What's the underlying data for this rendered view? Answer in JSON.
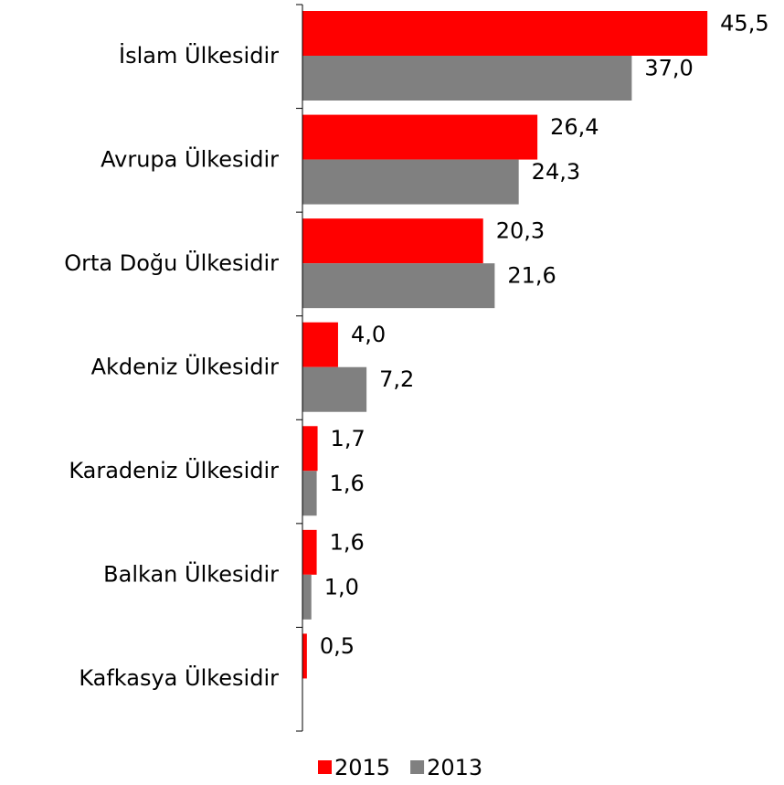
{
  "chart_data": {
    "type": "bar",
    "orientation": "horizontal",
    "categories": [
      "İslam Ülkesidir",
      "Avrupa Ülkesidir",
      "Orta Doğu Ülkesidir",
      "Akdeniz Ülkesidir",
      "Karadeniz Ülkesidir",
      "Balkan Ülkesidir",
      "Kafkasya Ülkesidir"
    ],
    "series": [
      {
        "name": "2015",
        "color": "#ff0000",
        "values": [
          45.5,
          26.4,
          20.3,
          4.0,
          1.7,
          1.6,
          0.5
        ],
        "value_labels": [
          "45,5",
          "26,4",
          "20,3",
          "4,0",
          "1,7",
          "1,6",
          "0,5"
        ]
      },
      {
        "name": "2013",
        "color": "#808080",
        "values": [
          37.0,
          24.3,
          21.6,
          7.2,
          1.6,
          1.0,
          null
        ],
        "value_labels": [
          "37,0",
          "24,3",
          "21,6",
          "7,2",
          "1,6",
          "1,0",
          null
        ]
      }
    ],
    "xlim": [
      0,
      50
    ],
    "legend": "bottom"
  }
}
